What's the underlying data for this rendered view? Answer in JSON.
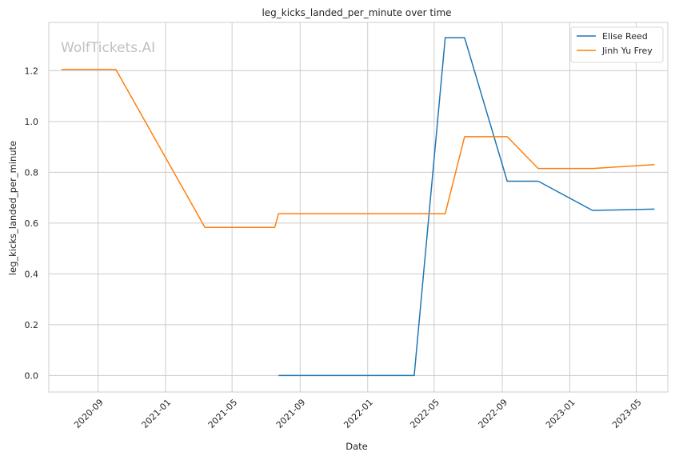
{
  "chart_data": {
    "type": "line",
    "title": "leg_kicks_landed_per_minute over time",
    "xlabel": "Date",
    "ylabel": "leg_kicks_landed_per_minute",
    "watermark": "WolfTickets.AI",
    "x_ticks": [
      "2020-09",
      "2021-01",
      "2021-05",
      "2021-09",
      "2022-01",
      "2022-05",
      "2022-09",
      "2023-01",
      "2023-05"
    ],
    "y_ticks": [
      "0.0",
      "0.2",
      "0.4",
      "0.6",
      "0.8",
      "1.0",
      "1.2"
    ],
    "xlim": [
      "2020-06-04",
      "2023-06-27"
    ],
    "ylim": [
      -0.065,
      1.39
    ],
    "grid": true,
    "legend_position": "top-right",
    "series": [
      {
        "name": "Elise Reed",
        "color": "#1f77b4",
        "points": [
          {
            "x": "2021-07-24",
            "y": 0.0
          },
          {
            "x": "2022-03-26",
            "y": 0.0
          },
          {
            "x": "2022-05-21",
            "y": 1.33
          },
          {
            "x": "2022-06-25",
            "y": 1.33
          },
          {
            "x": "2022-09-10",
            "y": 0.765
          },
          {
            "x": "2022-11-05",
            "y": 0.765
          },
          {
            "x": "2023-02-11",
            "y": 0.65
          },
          {
            "x": "2023-06-03",
            "y": 0.655
          }
        ]
      },
      {
        "name": "Jinh Yu Frey",
        "color": "#ff7f0e",
        "points": [
          {
            "x": "2020-06-27",
            "y": 1.205
          },
          {
            "x": "2020-10-03",
            "y": 1.205
          },
          {
            "x": "2021-03-13",
            "y": 0.583
          },
          {
            "x": "2021-07-17",
            "y": 0.583
          },
          {
            "x": "2021-07-24",
            "y": 0.637
          },
          {
            "x": "2022-05-21",
            "y": 0.637
          },
          {
            "x": "2022-06-25",
            "y": 0.94
          },
          {
            "x": "2022-09-10",
            "y": 0.94
          },
          {
            "x": "2022-11-05",
            "y": 0.815
          },
          {
            "x": "2023-02-11",
            "y": 0.815
          },
          {
            "x": "2023-06-03",
            "y": 0.83
          }
        ]
      }
    ]
  }
}
